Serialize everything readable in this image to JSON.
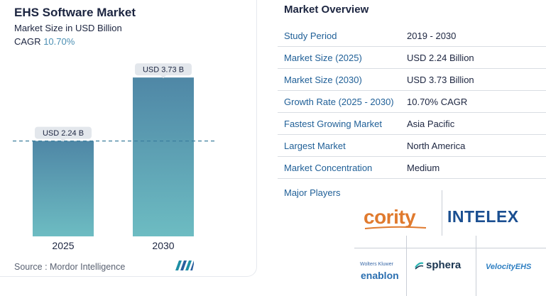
{
  "chart_data": {
    "type": "bar",
    "title": "EHS Software Market",
    "subtitle": "Market Size in USD Billion",
    "cagr_label": "CAGR",
    "cagr_value": "10.70%",
    "categories": [
      "2025",
      "2030"
    ],
    "values": [
      2.24,
      3.73
    ],
    "data_labels": [
      "USD 2.24 B",
      "USD 3.73 B"
    ],
    "reference_line_at": 2.24,
    "grid": false,
    "colors": {
      "bar_top": "#4f87a6",
      "bar_bottom": "#6dbcc2",
      "reference_line": "#3d7f9e",
      "label_bg": "#e3e7ec"
    }
  },
  "source": "Source :  Mordor Intelligence",
  "logo_mi": "mordor-intelligence-logo",
  "overview": {
    "title": "Market Overview",
    "rows": [
      {
        "label": "Study Period",
        "value": "2019 - 2030"
      },
      {
        "label": "Market Size (2025)",
        "value": "USD 2.24 Billion"
      },
      {
        "label": "Market Size (2030)",
        "value": "USD 3.73 Billion"
      },
      {
        "label": "Growth Rate (2025 - 2030)",
        "value": "10.70% CAGR"
      },
      {
        "label": "Fastest Growing Market",
        "value": "Asia Pacific"
      },
      {
        "label": "Largest Market",
        "value": "North America"
      },
      {
        "label": "Market Concentration",
        "value": "Medium"
      }
    ],
    "players_label": "Major Players",
    "players": {
      "cority": "cority",
      "intelex": "INTELEX",
      "wolters_kluwer": "Wolters Kluwer",
      "enablon": "enablon",
      "sphera": "sphera",
      "velocity": "VelocityEHS"
    }
  },
  "colors": {
    "label_blue": "#1f5f97",
    "cagr_blue": "#4c8fb3",
    "cority_orange": "#e07a2e",
    "intelex_blue": "#1b4f91"
  }
}
